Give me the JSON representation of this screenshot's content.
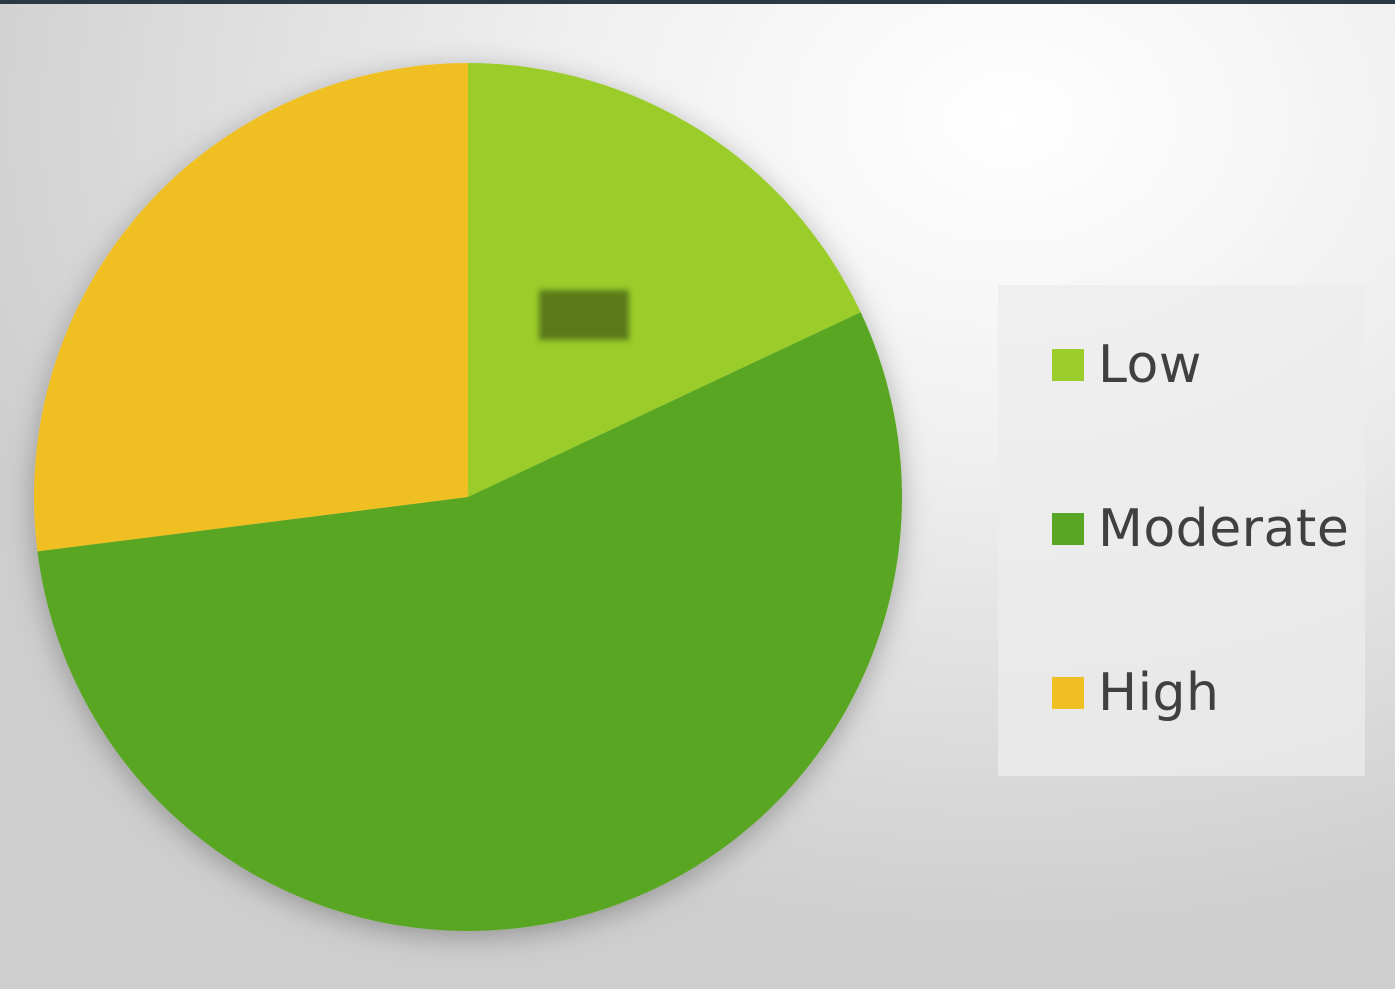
{
  "chart_data": {
    "type": "pie",
    "title": "",
    "categories": [
      "Low",
      "Moderate",
      "High"
    ],
    "values": [
      18,
      55,
      27
    ],
    "colors": [
      "#9acd2a",
      "#58a623",
      "#f0c022"
    ],
    "start_angle_deg": 0,
    "direction": "clockwise",
    "legend_position": "right",
    "data_labels_visible": false
  },
  "legend": {
    "items": [
      {
        "label": "Low",
        "color": "#9acd2a"
      },
      {
        "label": "Moderate",
        "color": "#58a623"
      },
      {
        "label": "High",
        "color": "#f0c022"
      }
    ]
  }
}
